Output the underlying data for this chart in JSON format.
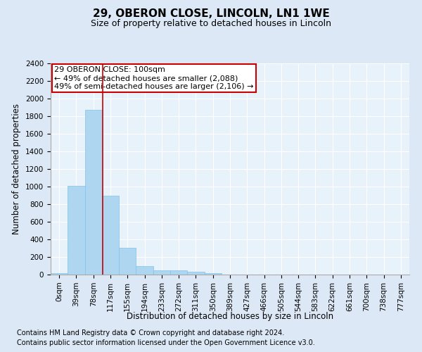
{
  "title1": "29, OBERON CLOSE, LINCOLN, LN1 1WE",
  "title2": "Size of property relative to detached houses in Lincoln",
  "xlabel": "Distribution of detached houses by size in Lincoln",
  "ylabel": "Number of detached properties",
  "categories": [
    "0sqm",
    "39sqm",
    "78sqm",
    "117sqm",
    "155sqm",
    "194sqm",
    "233sqm",
    "272sqm",
    "311sqm",
    "350sqm",
    "389sqm",
    "427sqm",
    "466sqm",
    "505sqm",
    "544sqm",
    "583sqm",
    "622sqm",
    "661sqm",
    "700sqm",
    "738sqm",
    "777sqm"
  ],
  "bar_values": [
    20,
    1005,
    1870,
    900,
    305,
    100,
    50,
    45,
    30,
    20,
    0,
    0,
    0,
    0,
    0,
    0,
    0,
    0,
    0,
    0,
    0
  ],
  "bar_color": "#aed6f1",
  "bar_edgecolor": "#85c1e9",
  "vline_x": 2.56,
  "vline_color": "#cc0000",
  "annotation_line1": "29 OBERON CLOSE: 100sqm",
  "annotation_line2": "← 49% of detached houses are smaller (2,088)",
  "annotation_line3": "49% of semi-detached houses are larger (2,106) →",
  "annotation_box_color": "#cc0000",
  "annotation_facecolor": "#ffffff",
  "ylim": [
    0,
    2400
  ],
  "yticks": [
    0,
    200,
    400,
    600,
    800,
    1000,
    1200,
    1400,
    1600,
    1800,
    2000,
    2200,
    2400
  ],
  "footnote1": "Contains HM Land Registry data © Crown copyright and database right 2024.",
  "footnote2": "Contains public sector information licensed under the Open Government Licence v3.0.",
  "background_color": "#dce8f5",
  "plot_background": "#e8f2fb",
  "title1_fontsize": 11,
  "title2_fontsize": 9,
  "xlabel_fontsize": 8.5,
  "ylabel_fontsize": 8.5,
  "tick_fontsize": 7.5,
  "footnote_fontsize": 7,
  "annotation_fontsize": 8
}
